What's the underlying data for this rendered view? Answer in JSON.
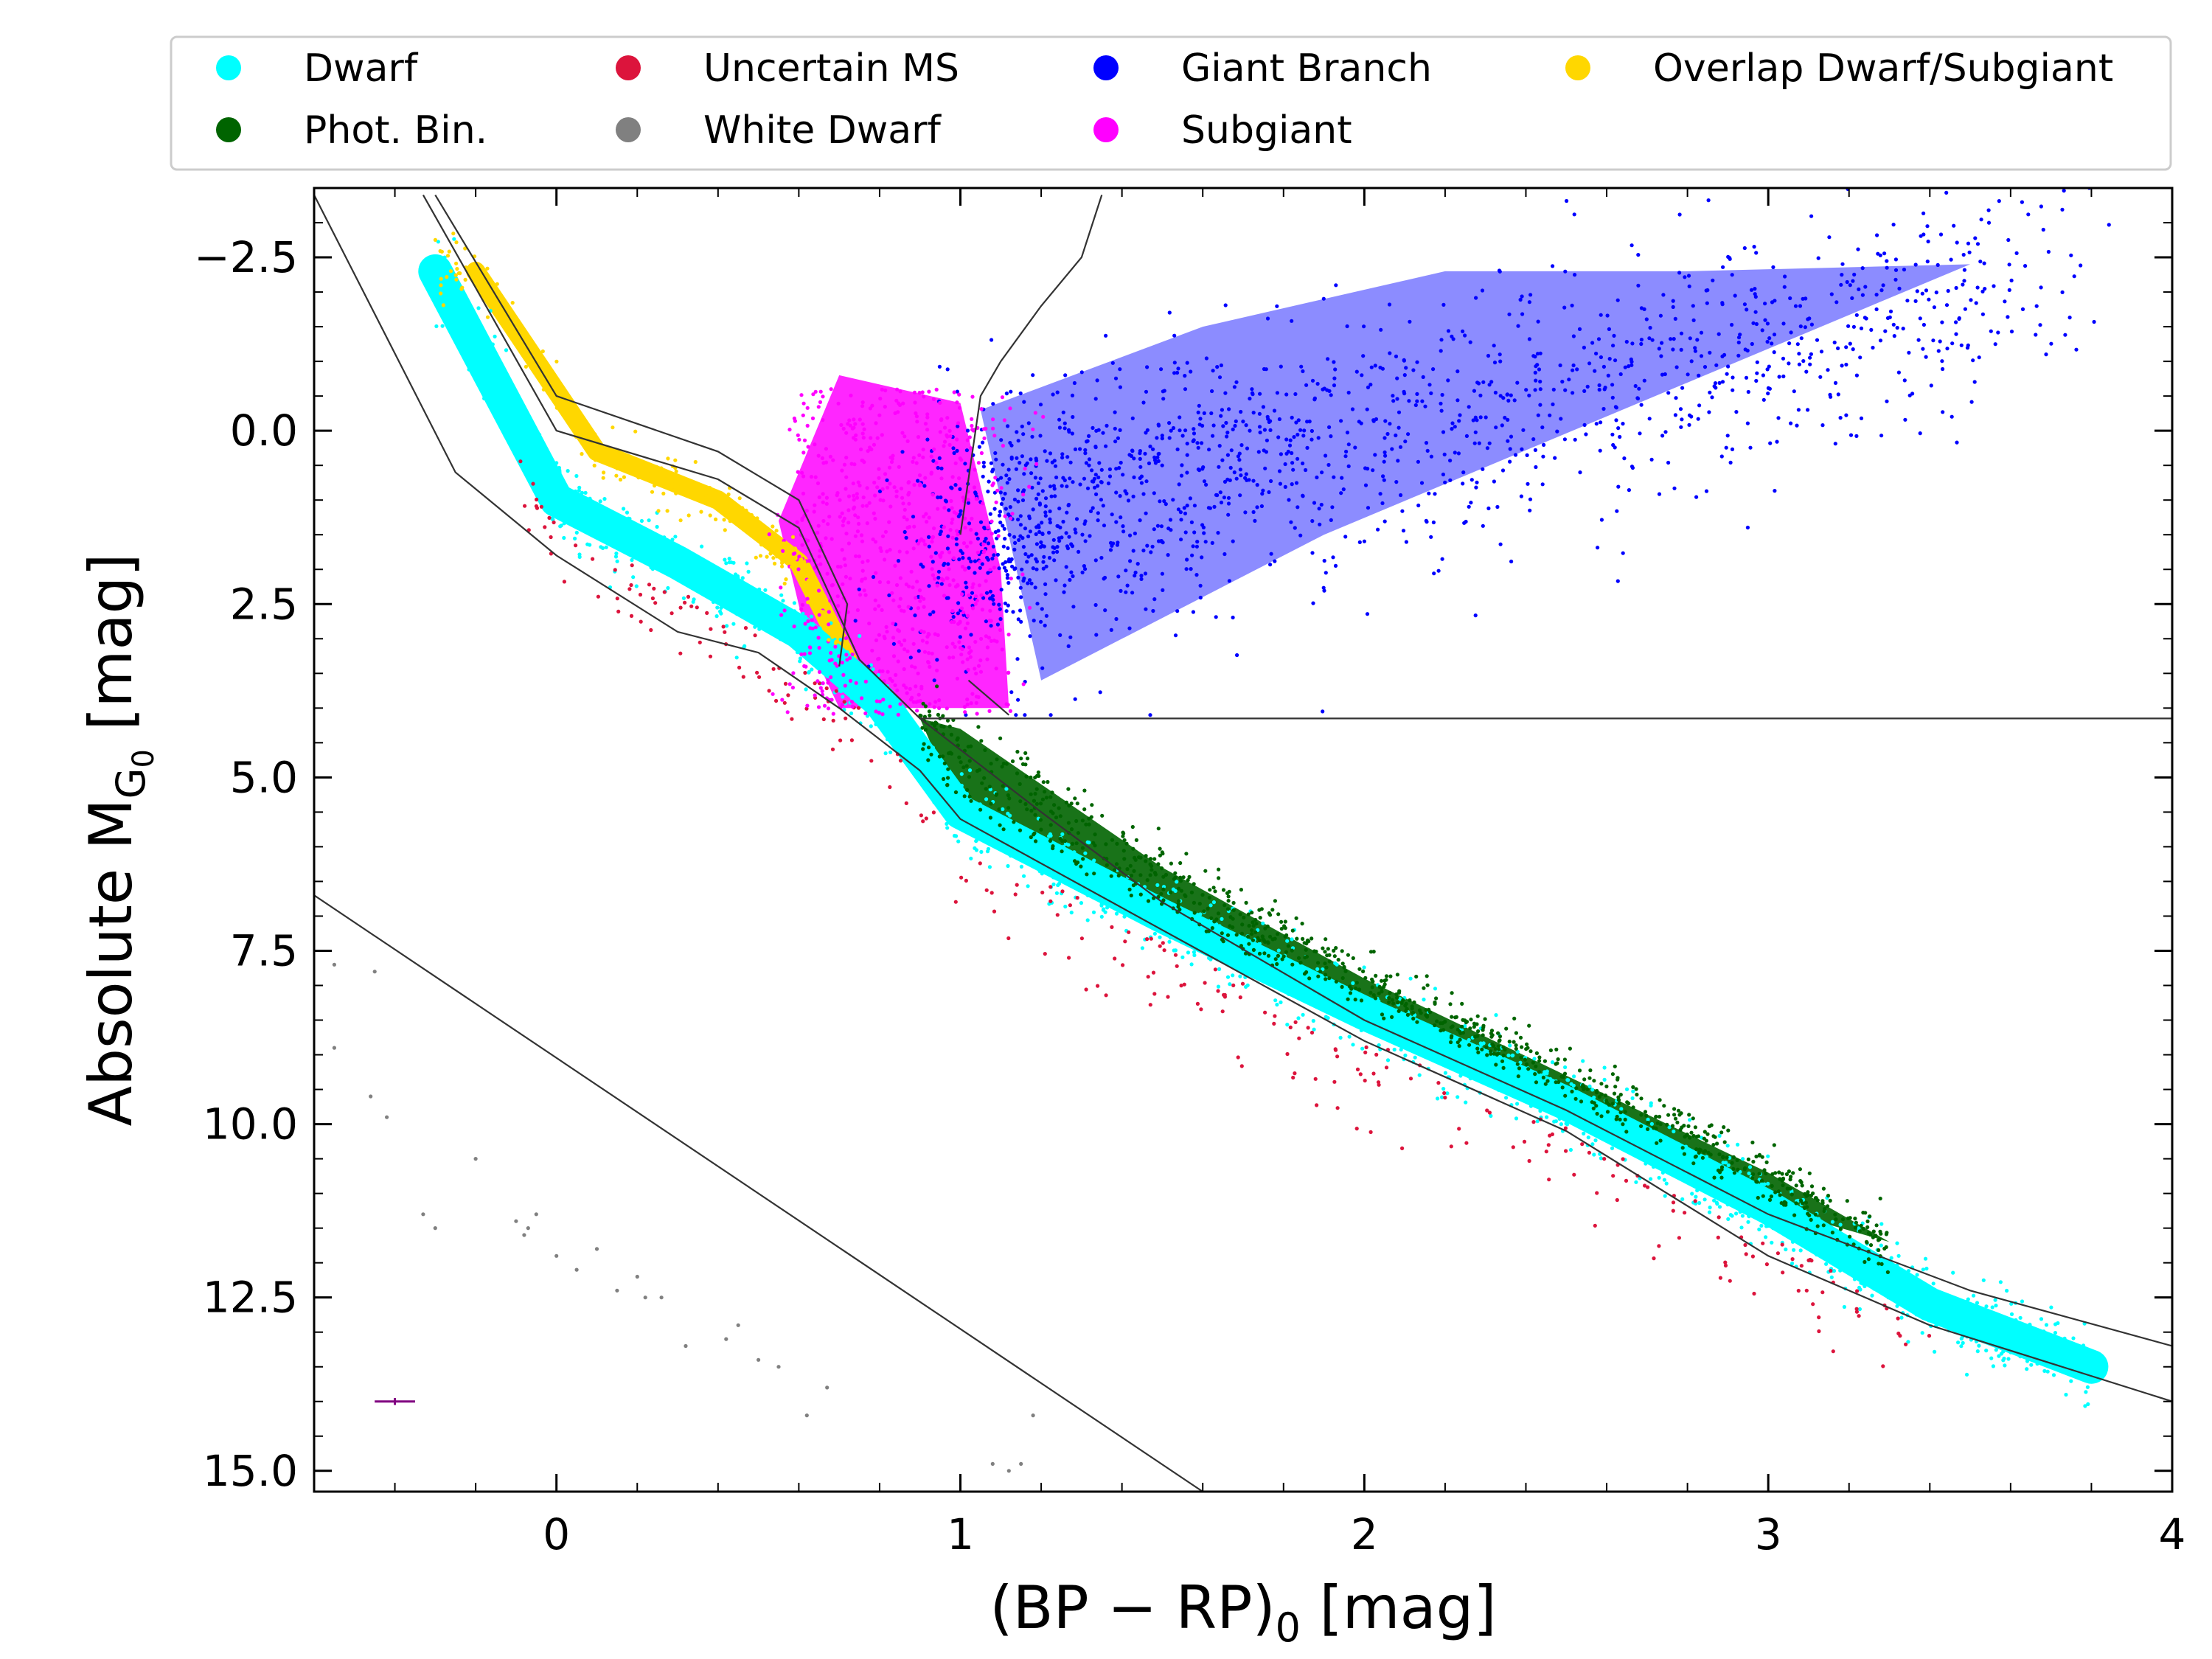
{
  "chart_data": {
    "type": "scatter",
    "title": "",
    "xlabel_main": "(BP − RP)",
    "xlabel_sub": "0",
    "xlabel_unit": " [mag]",
    "ylabel_main": "Absolute M",
    "ylabel_sub1": "G",
    "ylabel_sub2": "0",
    "ylabel_unit": " [mag]",
    "xlim": [
      -0.6,
      4.0
    ],
    "ylim": [
      15.3,
      -3.5
    ],
    "x_ticks": [
      {
        "value": 0,
        "label": "0"
      },
      {
        "value": 1,
        "label": "1"
      },
      {
        "value": 2,
        "label": "2"
      },
      {
        "value": 3,
        "label": "3"
      },
      {
        "value": 4,
        "label": "4"
      }
    ],
    "y_ticks": [
      {
        "value": -2.5,
        "label": "−2.5"
      },
      {
        "value": 0,
        "label": "0.0"
      },
      {
        "value": 2.5,
        "label": "2.5"
      },
      {
        "value": 5,
        "label": "5.0"
      },
      {
        "value": 7.5,
        "label": "7.5"
      },
      {
        "value": 10,
        "label": "10.0"
      },
      {
        "value": 12.5,
        "label": "12.5"
      },
      {
        "value": 15,
        "label": "15.0"
      }
    ],
    "legend_position": "top",
    "series": [
      {
        "name": "Dwarf",
        "color": "#00FFFF"
      },
      {
        "name": "Phot. Bin.",
        "color": "#006400"
      },
      {
        "name": "Uncertain MS",
        "color": "#DC143C"
      },
      {
        "name": "White Dwarf",
        "color": "#808080"
      },
      {
        "name": "Giant Branch",
        "color": "#0000FF"
      },
      {
        "name": "Subgiant",
        "color": "#FF00FF"
      },
      {
        "name": "Overlap Dwarf/Subgiant",
        "color": "#FFD700"
      }
    ],
    "ms_ridge": [
      [
        -0.3,
        -2.3
      ],
      [
        0.0,
        1.0
      ],
      [
        0.3,
        1.9
      ],
      [
        0.6,
        2.9
      ],
      [
        0.8,
        3.9
      ],
      [
        1.0,
        5.5
      ],
      [
        1.5,
        7.0
      ],
      [
        2.0,
        8.4
      ],
      [
        2.5,
        9.7
      ],
      [
        3.0,
        11.2
      ],
      [
        3.4,
        12.6
      ],
      [
        3.8,
        13.5
      ]
    ],
    "subgiant_region": [
      [
        0.7,
        -0.8
      ],
      [
        1.0,
        -0.4
      ],
      [
        1.1,
        2.0
      ],
      [
        1.12,
        4.0
      ],
      [
        0.7,
        4.0
      ],
      [
        0.62,
        3.0
      ],
      [
        0.55,
        1.3
      ]
    ],
    "giant_region": [
      [
        1.05,
        -0.3
      ],
      [
        1.6,
        -1.5
      ],
      [
        2.2,
        -2.3
      ],
      [
        2.8,
        -2.3
      ],
      [
        3.5,
        -2.4
      ],
      [
        1.9,
        1.5
      ],
      [
        1.2,
        3.6
      ]
    ],
    "binary_band_top": [
      [
        0.9,
        4.15
      ],
      [
        1.0,
        4.3
      ],
      [
        1.5,
        6.3
      ],
      [
        2.0,
        7.9
      ],
      [
        2.5,
        9.3
      ],
      [
        3.0,
        10.7
      ],
      [
        3.3,
        11.7
      ]
    ],
    "overlap_band": [
      [
        -0.2,
        -2.3
      ],
      [
        0.1,
        0.3
      ],
      [
        0.4,
        1.0
      ],
      [
        0.6,
        1.9
      ],
      [
        0.72,
        3.3
      ]
    ],
    "white_dwarfs": [
      [
        -0.55,
        7.7
      ],
      [
        -0.45,
        7.8
      ],
      [
        -0.55,
        8.9
      ],
      [
        -0.46,
        9.6
      ],
      [
        -0.42,
        9.9
      ],
      [
        -0.33,
        11.3
      ],
      [
        -0.3,
        11.5
      ],
      [
        -0.2,
        10.5
      ],
      [
        -0.1,
        11.4
      ],
      [
        -0.08,
        11.6
      ],
      [
        -0.07,
        11.5
      ],
      [
        -0.05,
        11.3
      ],
      [
        0.0,
        11.9
      ],
      [
        0.05,
        12.1
      ],
      [
        0.1,
        11.8
      ],
      [
        0.15,
        12.4
      ],
      [
        0.2,
        12.2
      ],
      [
        0.22,
        12.5
      ],
      [
        0.26,
        12.5
      ],
      [
        0.32,
        13.2
      ],
      [
        0.42,
        13.1
      ],
      [
        0.45,
        12.9
      ],
      [
        0.5,
        13.4
      ],
      [
        0.55,
        13.5
      ],
      [
        0.62,
        14.2
      ],
      [
        0.67,
        13.8
      ],
      [
        1.08,
        14.9
      ],
      [
        1.12,
        15.0
      ],
      [
        1.15,
        14.9
      ],
      [
        1.18,
        14.2
      ]
    ],
    "boundaries": {
      "ms_lower_edge": [
        [
          -0.6,
          -3.4
        ],
        [
          -0.25,
          0.6
        ],
        [
          0.0,
          1.8
        ],
        [
          0.3,
          2.9
        ],
        [
          0.5,
          3.2
        ],
        [
          0.7,
          4.0
        ],
        [
          0.9,
          4.9
        ],
        [
          1.0,
          5.6
        ],
        [
          1.5,
          7.2
        ],
        [
          2.0,
          8.8
        ],
        [
          2.5,
          10.1
        ],
        [
          3.0,
          11.9
        ],
        [
          3.4,
          12.9
        ],
        [
          4.0,
          14.0
        ]
      ],
      "ms_upper_edge": [
        [
          -0.33,
          -3.4
        ],
        [
          0.0,
          0.0
        ],
        [
          0.4,
          0.7
        ],
        [
          0.6,
          1.4
        ],
        [
          0.75,
          3.3
        ],
        [
          0.9,
          4.15
        ],
        [
          1.2,
          5.5
        ],
        [
          1.5,
          6.8
        ],
        [
          2.0,
          8.5
        ],
        [
          2.5,
          9.8
        ],
        [
          3.0,
          11.3
        ],
        [
          3.5,
          12.4
        ],
        [
          4.0,
          13.2
        ]
      ],
      "overlap_upper_edge": [
        [
          -0.3,
          -3.4
        ],
        [
          0.0,
          -0.5
        ],
        [
          0.4,
          0.3
        ],
        [
          0.6,
          1.0
        ],
        [
          0.72,
          2.5
        ],
        [
          0.7,
          3.4
        ]
      ],
      "giant_boundary": [
        [
          1.0,
          1.5
        ],
        [
          1.05,
          -0.5
        ],
        [
          1.1,
          -1.0
        ],
        [
          1.2,
          -1.8
        ],
        [
          1.3,
          -2.5
        ],
        [
          1.35,
          -3.4
        ]
      ],
      "subgiant_bottom": [
        [
          0.9,
          4.15
        ],
        [
          4.0,
          4.15
        ]
      ],
      "subgiant_right": [
        [
          1.02,
          3.6
        ],
        [
          1.12,
          4.1
        ]
      ],
      "wd_line": [
        [
          -0.6,
          6.7
        ],
        [
          1.6,
          15.3
        ]
      ]
    },
    "error_bar": {
      "x": -0.4,
      "y": 14.0,
      "xerr": 0.05,
      "yerr": 0.05
    }
  }
}
